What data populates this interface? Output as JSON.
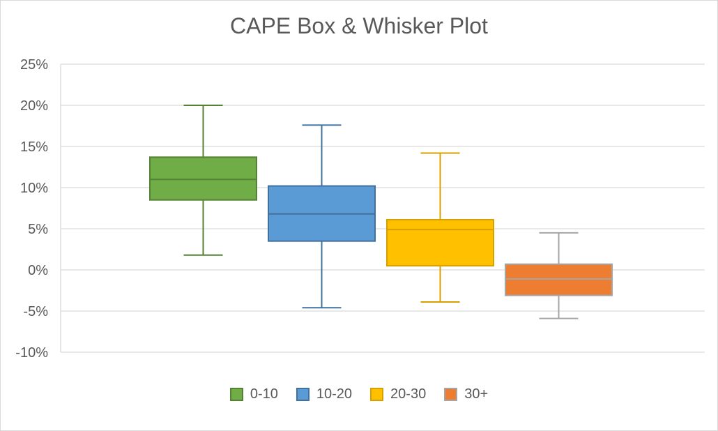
{
  "chart_data": {
    "type": "box",
    "title": "CAPE Box & Whisker Plot",
    "xlabel": "",
    "ylabel": "",
    "ylim": [
      -10,
      25
    ],
    "y_ticks": [
      25,
      20,
      15,
      10,
      5,
      0,
      -5,
      -10
    ],
    "y_tick_labels": [
      "25%",
      "20%",
      "15%",
      "10%",
      "5%",
      "0%",
      "-5%",
      "-10%"
    ],
    "grid": true,
    "legend_position": "bottom",
    "series": [
      {
        "name": "0-10",
        "min": 1.8,
        "q1": 8.5,
        "median": 11.0,
        "q3": 13.7,
        "max": 20.0,
        "fill": "#70ad47",
        "stroke": "#548235"
      },
      {
        "name": "10-20",
        "min": -4.6,
        "q1": 3.5,
        "median": 6.8,
        "q3": 10.2,
        "max": 17.6,
        "fill": "#5b9bd5",
        "stroke": "#41719c"
      },
      {
        "name": "20-30",
        "min": -3.9,
        "q1": 0.5,
        "median": 4.9,
        "q3": 6.1,
        "max": 14.2,
        "fill": "#ffc000",
        "stroke": "#d6a100"
      },
      {
        "name": "30+",
        "min": -5.9,
        "q1": -3.1,
        "median": -1.1,
        "q3": 0.7,
        "max": 4.5,
        "fill": "#ed7d31",
        "stroke": "#a5a5a5"
      }
    ]
  }
}
